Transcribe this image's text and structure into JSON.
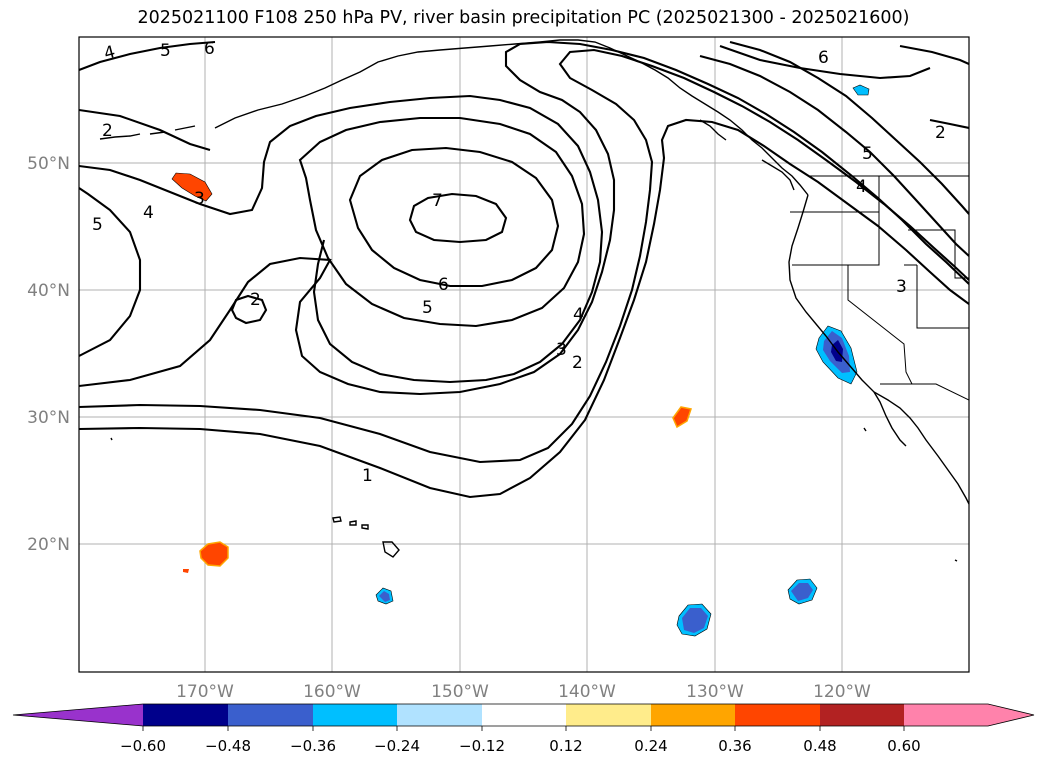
{
  "title": "2025021100 F108 250 hPa PV, river basin precipitation PC (2025021300 - 2025021600)",
  "map": {
    "lon_labels": [
      "170°W",
      "160°W",
      "150°W",
      "140°W",
      "130°W",
      "120°W"
    ],
    "lat_labels": [
      "50°N",
      "40°N",
      "30°N",
      "20°N"
    ],
    "gridlines": true,
    "coastlines": true,
    "state_borders": true
  },
  "contour_labels": [
    "4",
    "5",
    "6",
    "2",
    "5",
    "4",
    "3",
    "7",
    "2",
    "6",
    "5",
    "4",
    "3",
    "2",
    "1",
    "6",
    "5",
    "4",
    "3",
    "2"
  ],
  "colorbar": {
    "ticks": [
      "−0.60",
      "−0.48",
      "−0.36",
      "−0.24",
      "−0.12",
      "0.12",
      "0.24",
      "0.36",
      "0.48",
      "0.60"
    ],
    "colors": [
      "#9932cc",
      "#00008b",
      "#3a5fcd",
      "#00bfff",
      "#b0e2ff",
      "#ffffff",
      "#ffec8b",
      "#ffa500",
      "#ff4500",
      "#b22222",
      "#ff82ab"
    ],
    "extend": "both"
  }
}
